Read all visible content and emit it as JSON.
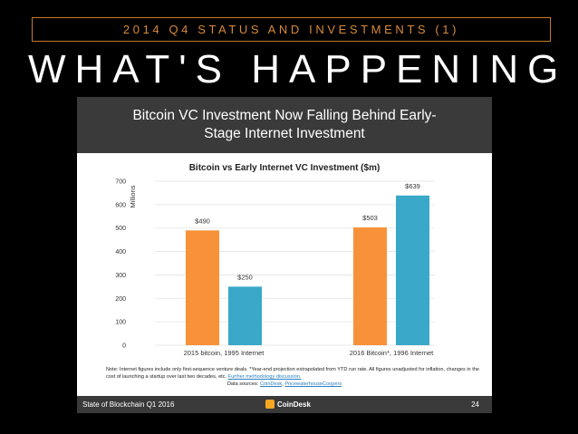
{
  "banner": "2014 Q4 STATUS AND INVESTMENTS (1)",
  "heading": "WHAT'S HAPPENING",
  "slide": {
    "title_line1": "Bitcoin VC Investment Now Falling Behind Early-",
    "title_line2": "Stage Internet Investment",
    "note": "Note: Internet figures include only first-sequence venture deals. *Year-end projection extrapolated from YTD run rate. All figures unadjusted for inflation, changes in the cost of launching a startup over last two decades, etc.",
    "note_link": "Further methodology discussion.",
    "sources_prefix": "Data sources:",
    "source1": "CoinDesk",
    "source2": "PricewaterhouseCoopers",
    "footer_left": "State of Blockchain Q1 2016",
    "footer_logo": "CoinDesk",
    "footer_page": "24"
  },
  "chart_data": {
    "type": "bar",
    "title": "Bitcoin vs Early Internet VC Investment ($m)",
    "ylabel": "Millions",
    "ylim": [
      0,
      700
    ],
    "yticks": [
      0,
      100,
      200,
      300,
      400,
      500,
      600,
      700
    ],
    "categories": [
      "2015 bitcoin, 1995 Internet",
      "2016 Bitcoin*, 1996 Internet"
    ],
    "series": [
      {
        "color": "#f7923a",
        "values": [
          490,
          503
        ],
        "labels": [
          "$490",
          "$503"
        ]
      },
      {
        "color": "#3aa8c8",
        "values": [
          250,
          639
        ],
        "labels": [
          "$250",
          "$639"
        ]
      }
    ]
  }
}
